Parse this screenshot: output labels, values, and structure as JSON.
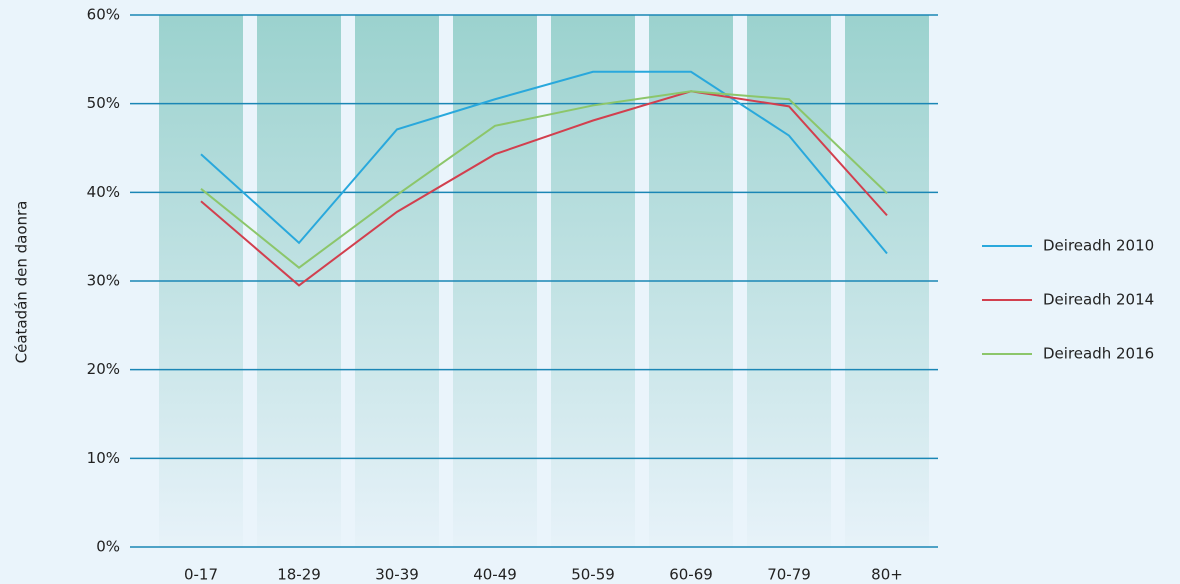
{
  "chart_data": {
    "type": "line",
    "y_label": "Céatadán den daonra",
    "categories": [
      "0-17",
      "18-29",
      "30-39",
      "40-49",
      "50-59",
      "60-69",
      "70-79",
      "80+"
    ],
    "series": [
      {
        "name": "Deireadh 2010",
        "color": "#29a8dc",
        "values": [
          44.3,
          34.3,
          47.1,
          50.5,
          53.6,
          53.6,
          46.4,
          33.1
        ]
      },
      {
        "name": "Deireadh 2014",
        "color": "#d23f4e",
        "values": [
          39.0,
          29.5,
          37.8,
          44.3,
          48.1,
          51.4,
          49.7,
          37.4
        ]
      },
      {
        "name": "Deireadh 2016",
        "color": "#8cc66a",
        "values": [
          40.4,
          31.5,
          39.7,
          47.5,
          49.8,
          51.4,
          50.5,
          39.9
        ]
      }
    ],
    "ylim": [
      0,
      60
    ],
    "yticks": [
      {
        "value": 0,
        "label": "0%"
      },
      {
        "value": 10,
        "label": "10%"
      },
      {
        "value": 20,
        "label": "20%"
      },
      {
        "value": 30,
        "label": "30%"
      },
      {
        "value": 40,
        "label": "40%"
      },
      {
        "value": 50,
        "label": "50%"
      },
      {
        "value": 60,
        "label": "60%"
      }
    ],
    "grid": true,
    "legend": "right"
  }
}
